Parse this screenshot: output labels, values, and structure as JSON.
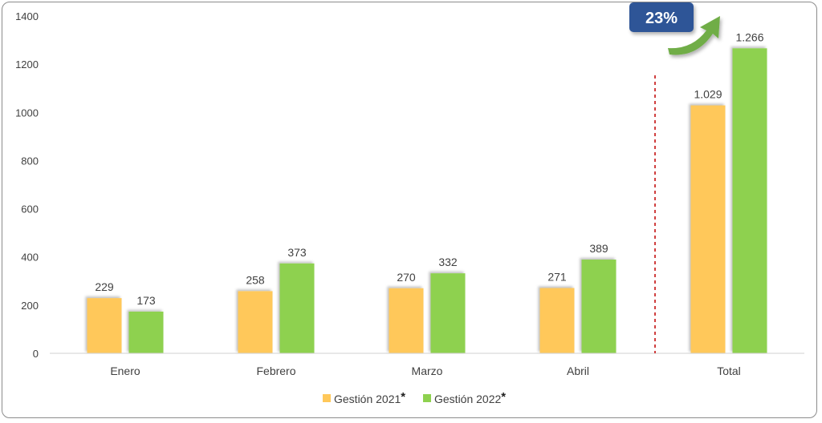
{
  "chart_data": {
    "type": "bar",
    "categories": [
      "Enero",
      "Febrero",
      "Marzo",
      "Abril",
      "Total"
    ],
    "series": [
      {
        "name": "Gestión 2021",
        "marker": "*",
        "color": "#ffc85a",
        "values": [
          229,
          258,
          270,
          271,
          1029
        ],
        "labels": [
          "229",
          "258",
          "270",
          "271",
          "1.029"
        ]
      },
      {
        "name": "Gestión 2022",
        "marker": "*",
        "color": "#8ed14f",
        "values": [
          173,
          373,
          332,
          389,
          1266
        ],
        "labels": [
          "173",
          "373",
          "332",
          "389",
          "1.266"
        ]
      }
    ],
    "ylim": [
      0,
      1400
    ],
    "yticks": [
      0,
      200,
      400,
      600,
      800,
      1000,
      1200,
      1400
    ],
    "grid": false,
    "legend_position": "bottom",
    "separator_before": "Total",
    "annotation": {
      "text": "23%",
      "color": "#2e5597",
      "arrow_color": "#70ad47"
    }
  }
}
